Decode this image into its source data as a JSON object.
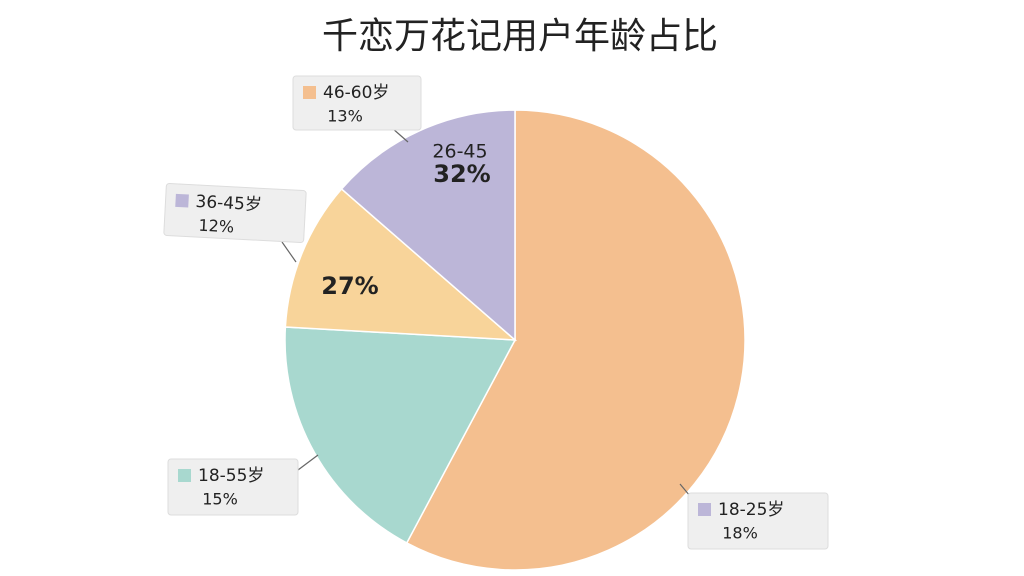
{
  "chart_data": {
    "type": "pie",
    "title": "千恋万花记用户年龄占比",
    "values": [
      57.8,
      18.1,
      10.5,
      13.6
    ],
    "colors": [
      "#f4bf8f",
      "#a8d8cf",
      "#f8d49a",
      "#bcb6d8"
    ],
    "annotations": [
      {
        "label": "46-60岁",
        "text": "13%",
        "marker_color": "#f4bf8f"
      },
      {
        "label": "36-45岁",
        "text": "12%",
        "marker_color": "#bcb6d8"
      },
      {
        "label": "18-55岁",
        "text": "15%",
        "marker_color": "#a8d8cf"
      },
      {
        "label": "18-25岁",
        "text": "18%",
        "marker_color": "#bcb6d8"
      }
    ],
    "inner_labels": [
      {
        "label": "26-45",
        "text": "32%"
      },
      {
        "label": null,
        "text": "27%"
      }
    ]
  }
}
